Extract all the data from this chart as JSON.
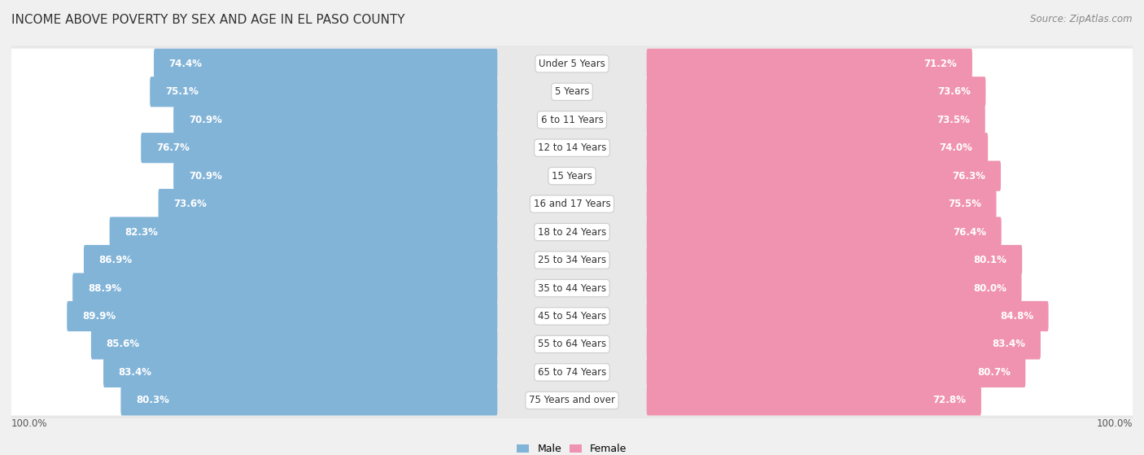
{
  "title": "INCOME ABOVE POVERTY BY SEX AND AGE IN EL PASO COUNTY",
  "source": "Source: ZipAtlas.com",
  "categories": [
    "Under 5 Years",
    "5 Years",
    "6 to 11 Years",
    "12 to 14 Years",
    "15 Years",
    "16 and 17 Years",
    "18 to 24 Years",
    "25 to 34 Years",
    "35 to 44 Years",
    "45 to 54 Years",
    "55 to 64 Years",
    "65 to 74 Years",
    "75 Years and over"
  ],
  "male_values": [
    74.4,
    75.1,
    70.9,
    76.7,
    70.9,
    73.6,
    82.3,
    86.9,
    88.9,
    89.9,
    85.6,
    83.4,
    80.3
  ],
  "female_values": [
    71.2,
    73.6,
    73.5,
    74.0,
    76.3,
    75.5,
    76.4,
    80.1,
    80.0,
    84.8,
    83.4,
    80.7,
    72.8
  ],
  "male_color": "#82b4d8",
  "female_color": "#f093b0",
  "background_color": "#f0f0f0",
  "bar_bg_color": "#ffffff",
  "row_bg_color": "#e8e8e8",
  "axis_label_left": "100.0%",
  "axis_label_right": "100.0%",
  "legend_male": "Male",
  "legend_female": "Female",
  "title_fontsize": 11,
  "source_fontsize": 8.5,
  "value_fontsize": 8.5,
  "category_fontsize": 8.5
}
